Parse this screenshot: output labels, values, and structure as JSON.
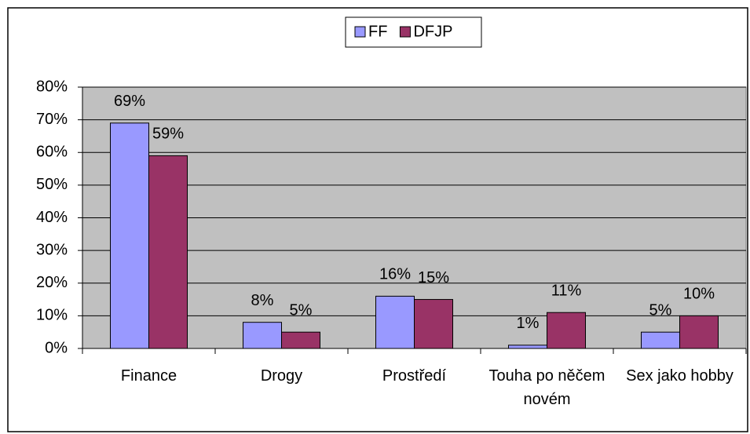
{
  "chart_data": {
    "type": "bar",
    "categories": [
      "Finance",
      "Drogy",
      "Prostředí",
      "Touha po něčem novém",
      "Sex jako hobby"
    ],
    "series": [
      {
        "name": "FF",
        "color": "#9999ff",
        "values": [
          69,
          8,
          16,
          1,
          5
        ],
        "value_labels": [
          "69%",
          "8%",
          "16%",
          "1%",
          "5%"
        ]
      },
      {
        "name": "DFJP",
        "color": "#993366",
        "values": [
          59,
          5,
          15,
          11,
          10
        ],
        "value_labels": [
          "59%",
          "5%",
          "15%",
          "11%",
          "10%"
        ]
      }
    ],
    "ylim": [
      0,
      80
    ],
    "yticks": [
      {
        "value": 0,
        "label": "0%"
      },
      {
        "value": 10,
        "label": "10%"
      },
      {
        "value": 20,
        "label": "20%"
      },
      {
        "value": 30,
        "label": "30%"
      },
      {
        "value": 40,
        "label": "40%"
      },
      {
        "value": 50,
        "label": "50%"
      },
      {
        "value": 60,
        "label": "60%"
      },
      {
        "value": 70,
        "label": "70%"
      },
      {
        "value": 80,
        "label": "80%"
      }
    ],
    "grid": true,
    "plot_background": "#c0c0c0",
    "legend": "top"
  }
}
